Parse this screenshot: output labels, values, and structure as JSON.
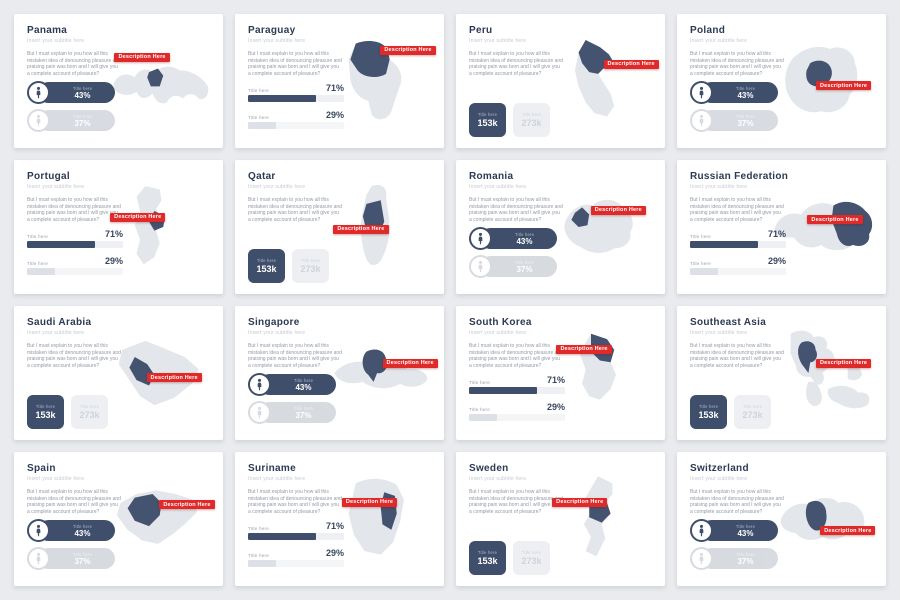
{
  "slide_deck": {
    "shared": {
      "subtitle": "Insert your subtitle here",
      "body": "But I must explain to you how all this mistaken idea of denouncing pleasure and praising pain was born and I will give you a complete account of pleasure?",
      "tag": "Description Here",
      "stat_label": "Title here",
      "pills": {
        "primary_value": "43%",
        "secondary_value": "37%"
      },
      "bars": {
        "primary_value": "71%",
        "primary_pct": 71,
        "secondary_value": "29%",
        "secondary_pct": 29
      },
      "boxes": {
        "primary_value": "153k",
        "secondary_value": "273k"
      }
    },
    "colors": {
      "accent_navy": "#3e4e6b",
      "accent_red": "#e02a2a",
      "map_base": "#e3e6ea",
      "map_region": "#44536f",
      "page_bg": "#e9ebee",
      "card_bg": "#ffffff",
      "title_text": "#2c3a54"
    },
    "cards": [
      {
        "id": "panama",
        "title": "Panama",
        "stat_type": "pills"
      },
      {
        "id": "paraguay",
        "title": "Paraguay",
        "stat_type": "bars"
      },
      {
        "id": "peru",
        "title": "Peru",
        "stat_type": "boxes"
      },
      {
        "id": "poland",
        "title": "Poland",
        "stat_type": "pills"
      },
      {
        "id": "portugal",
        "title": "Portugal",
        "stat_type": "bars"
      },
      {
        "id": "qatar",
        "title": "Qatar",
        "stat_type": "boxes"
      },
      {
        "id": "romania",
        "title": "Romania",
        "stat_type": "pills"
      },
      {
        "id": "russia",
        "title": "Russian Federation",
        "stat_type": "bars"
      },
      {
        "id": "saudi",
        "title": "Saudi Arabia",
        "stat_type": "boxes"
      },
      {
        "id": "singapore",
        "title": "Singapore",
        "stat_type": "pills"
      },
      {
        "id": "south_korea",
        "title": "South Korea",
        "stat_type": "bars"
      },
      {
        "id": "southeast_asia",
        "title": "Southeast Asia",
        "stat_type": "boxes"
      },
      {
        "id": "spain",
        "title": "Spain",
        "stat_type": "pills"
      },
      {
        "id": "suriname",
        "title": "Suriname",
        "stat_type": "bars"
      },
      {
        "id": "sweden",
        "title": "Sweden",
        "stat_type": "boxes"
      },
      {
        "id": "switzerland",
        "title": "Switzerland",
        "stat_type": "pills"
      }
    ]
  }
}
